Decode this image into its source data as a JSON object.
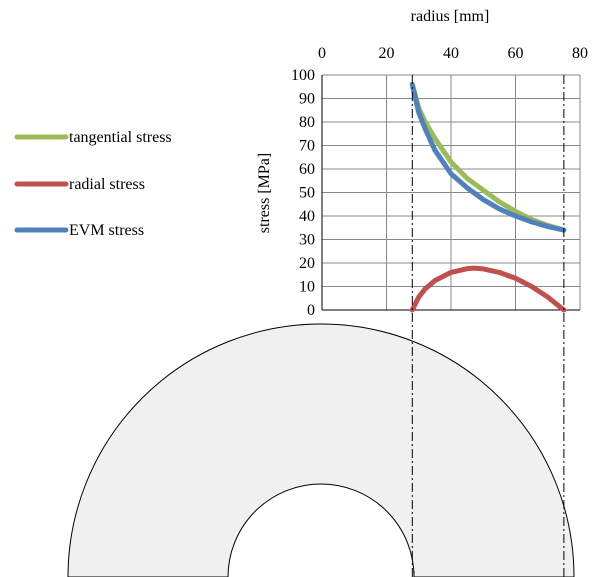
{
  "chart_data": {
    "type": "line",
    "xlabel": "radius [mm]",
    "ylabel": "stress [MPa]",
    "xlim": [
      0,
      80
    ],
    "ylim": [
      0,
      100
    ],
    "x_ticks": [
      "0",
      "20",
      "40",
      "60",
      "80"
    ],
    "y_ticks": [
      "0",
      "10",
      "20",
      "30",
      "40",
      "50",
      "60",
      "70",
      "80",
      "90",
      "100"
    ],
    "grid": true,
    "x_axis_position": "top",
    "legend_position": "left",
    "inner_radius": 28,
    "outer_radius": 75,
    "series": [
      {
        "name": "tangential stress",
        "color": "#9bbb59",
        "x": [
          28,
          30,
          32,
          35,
          40,
          45,
          50,
          55,
          60,
          65,
          70,
          75
        ],
        "y": [
          96,
          86,
          80,
          73,
          63,
          56,
          51,
          46,
          42,
          38.5,
          36,
          34
        ]
      },
      {
        "name": "radial stress",
        "color": "#c0504d",
        "x": [
          28,
          30,
          32,
          35,
          40,
          45,
          47,
          50,
          55,
          60,
          65,
          70,
          75
        ],
        "y": [
          0,
          5.5,
          9,
          12.5,
          16,
          17.6,
          17.8,
          17.5,
          16,
          13.5,
          10,
          5.5,
          0
        ]
      },
      {
        "name": "EVM stress",
        "color": "#4f81bd",
        "x": [
          28,
          30,
          32,
          35,
          40,
          45,
          50,
          55,
          60,
          65,
          70,
          75
        ],
        "y": [
          96,
          84,
          77,
          68,
          58,
          52,
          47,
          43,
          40,
          37.5,
          35.5,
          34
        ]
      }
    ]
  },
  "ring": {
    "fill": "#f0f0f0",
    "stroke": "#000000"
  }
}
